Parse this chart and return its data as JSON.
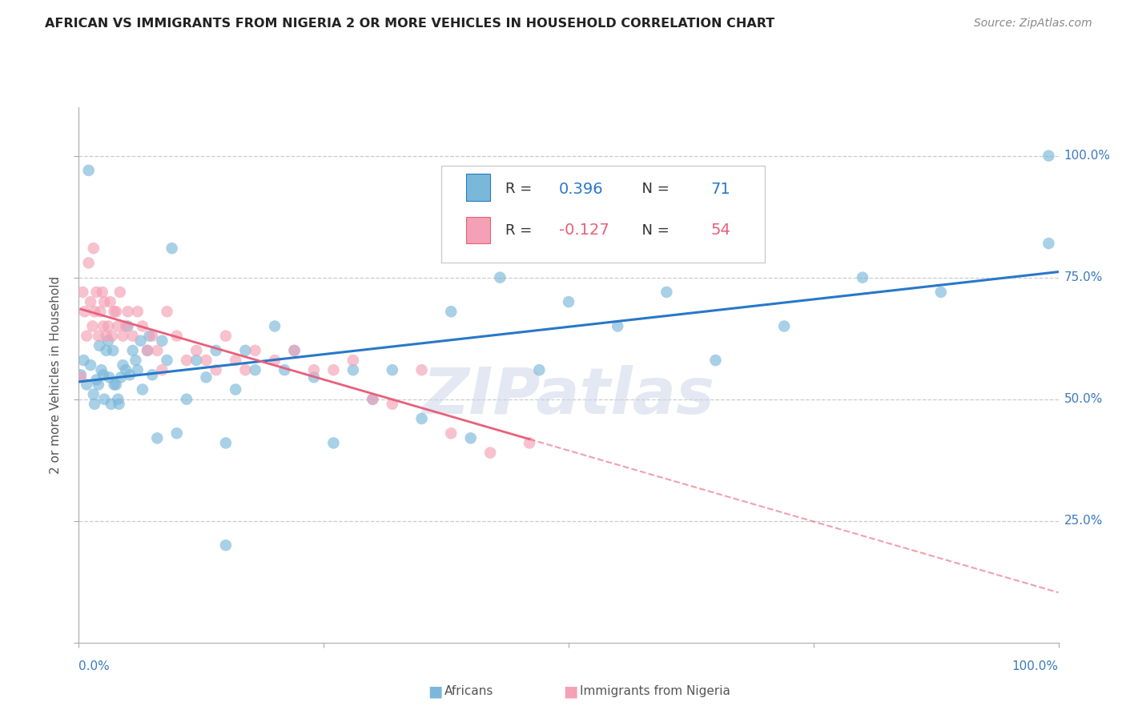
{
  "title": "AFRICAN VS IMMIGRANTS FROM NIGERIA 2 OR MORE VEHICLES IN HOUSEHOLD CORRELATION CHART",
  "source": "Source: ZipAtlas.com",
  "ylabel": "2 or more Vehicles in Household",
  "blue_color": "#7ab8d9",
  "pink_color": "#f4a0b5",
  "trend_blue": "#2878c8",
  "trend_pink": "#e8607a",
  "background_color": "#ffffff",
  "grid_color": "#cccccc",
  "watermark": "ZIPatlas",
  "legend_blue_label": "R =  0.396   N =  71",
  "legend_pink_label": "R = -0.127   N =  54",
  "legend_R_blue": "#2878c8",
  "legend_N_blue": "#2878c8",
  "legend_R_pink": "#e8607a",
  "legend_N_pink": "#e8607a",
  "blue_x": [
    0.002,
    0.005,
    0.008,
    0.01,
    0.012,
    0.015,
    0.016,
    0.018,
    0.02,
    0.021,
    0.023,
    0.025,
    0.026,
    0.028,
    0.03,
    0.031,
    0.033,
    0.035,
    0.036,
    0.038,
    0.04,
    0.041,
    0.043,
    0.045,
    0.048,
    0.05,
    0.052,
    0.055,
    0.058,
    0.06,
    0.063,
    0.065,
    0.07,
    0.072,
    0.075,
    0.08,
    0.085,
    0.09,
    0.095,
    0.1,
    0.11,
    0.12,
    0.13,
    0.14,
    0.15,
    0.16,
    0.17,
    0.18,
    0.2,
    0.21,
    0.22,
    0.24,
    0.26,
    0.28,
    0.3,
    0.32,
    0.35,
    0.38,
    0.4,
    0.43,
    0.47,
    0.5,
    0.55,
    0.6,
    0.65,
    0.72,
    0.8,
    0.88,
    0.99,
    0.15,
    0.99
  ],
  "blue_y": [
    0.55,
    0.58,
    0.53,
    0.97,
    0.57,
    0.51,
    0.49,
    0.54,
    0.53,
    0.61,
    0.56,
    0.55,
    0.5,
    0.6,
    0.62,
    0.545,
    0.49,
    0.6,
    0.53,
    0.53,
    0.5,
    0.49,
    0.545,
    0.57,
    0.56,
    0.65,
    0.55,
    0.6,
    0.58,
    0.56,
    0.62,
    0.52,
    0.6,
    0.63,
    0.55,
    0.42,
    0.62,
    0.58,
    0.81,
    0.43,
    0.5,
    0.58,
    0.545,
    0.6,
    0.41,
    0.52,
    0.6,
    0.56,
    0.65,
    0.56,
    0.6,
    0.545,
    0.41,
    0.56,
    0.5,
    0.56,
    0.46,
    0.68,
    0.42,
    0.75,
    0.56,
    0.7,
    0.65,
    0.72,
    0.58,
    0.65,
    0.75,
    0.72,
    0.82,
    0.2,
    1.0
  ],
  "pink_x": [
    0.002,
    0.004,
    0.006,
    0.008,
    0.01,
    0.012,
    0.014,
    0.015,
    0.016,
    0.018,
    0.02,
    0.022,
    0.024,
    0.025,
    0.026,
    0.028,
    0.03,
    0.032,
    0.034,
    0.036,
    0.038,
    0.04,
    0.042,
    0.045,
    0.048,
    0.05,
    0.055,
    0.06,
    0.065,
    0.07,
    0.075,
    0.08,
    0.085,
    0.09,
    0.1,
    0.11,
    0.12,
    0.13,
    0.14,
    0.15,
    0.16,
    0.17,
    0.18,
    0.2,
    0.22,
    0.24,
    0.26,
    0.28,
    0.3,
    0.32,
    0.35,
    0.38,
    0.42,
    0.46
  ],
  "pink_y": [
    0.545,
    0.72,
    0.68,
    0.63,
    0.78,
    0.7,
    0.65,
    0.81,
    0.68,
    0.72,
    0.63,
    0.68,
    0.72,
    0.65,
    0.7,
    0.63,
    0.65,
    0.7,
    0.63,
    0.68,
    0.68,
    0.65,
    0.72,
    0.63,
    0.65,
    0.68,
    0.63,
    0.68,
    0.65,
    0.6,
    0.63,
    0.6,
    0.56,
    0.68,
    0.63,
    0.58,
    0.6,
    0.58,
    0.56,
    0.63,
    0.58,
    0.56,
    0.6,
    0.58,
    0.6,
    0.56,
    0.56,
    0.58,
    0.5,
    0.49,
    0.56,
    0.43,
    0.39,
    0.41
  ]
}
